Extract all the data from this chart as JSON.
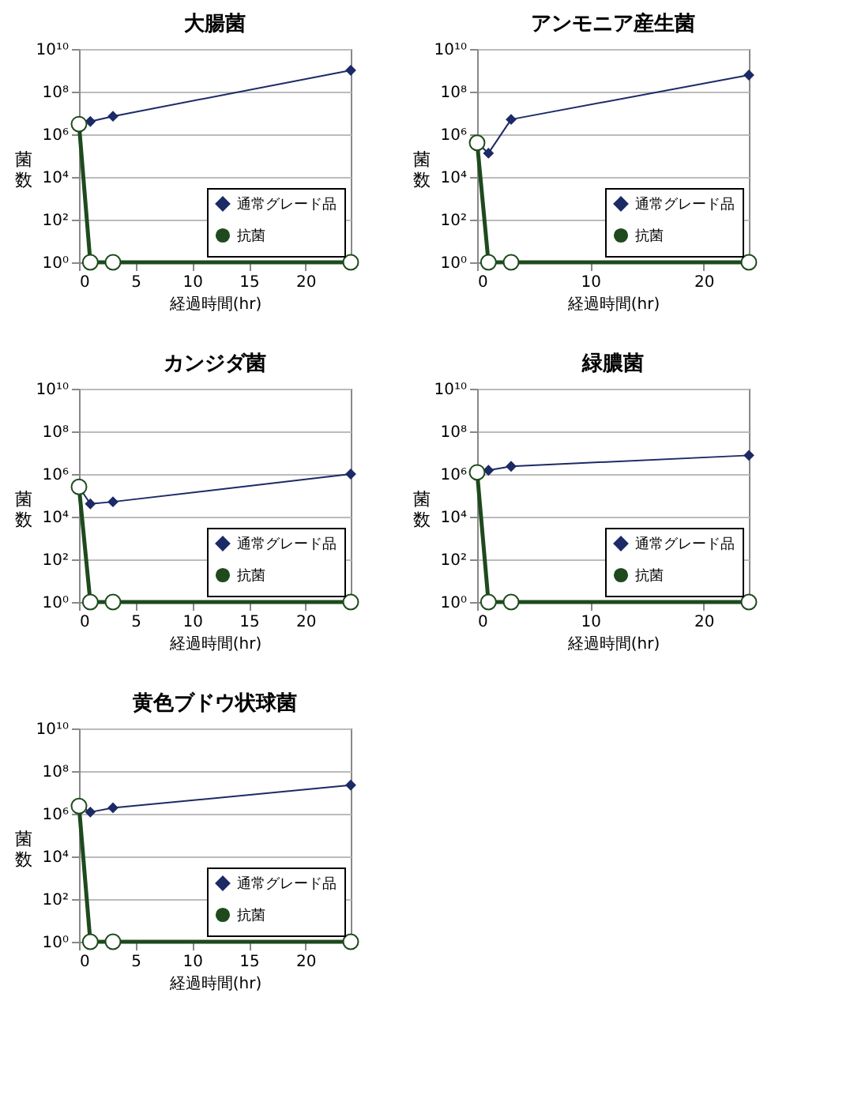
{
  "chart_data": [
    {
      "type": "line",
      "title": "大腸菌",
      "xlabel": "経過時間(hr)",
      "ylabel": "菌数",
      "log": "y",
      "legend": "bottom right",
      "grid": "y",
      "xlim": [
        0,
        24
      ],
      "xticks": [
        0,
        5,
        10,
        15,
        20
      ],
      "ylim": [
        1,
        10000000000
      ],
      "yticks": [
        {
          "value": 1,
          "label": "10⁰"
        },
        {
          "value": 100,
          "label": "10²"
        },
        {
          "value": 10000,
          "label": "10⁴"
        },
        {
          "value": 1000000,
          "label": "10⁶"
        },
        {
          "value": 100000000,
          "label": "10⁸"
        },
        {
          "value": 10000000000,
          "label": "10¹⁰"
        }
      ],
      "series": [
        {
          "name": "通常グレード品",
          "color": "#1c2a66",
          "marker": "diamond",
          "x": [
            0,
            1,
            3,
            24
          ],
          "values": [
            3000000,
            4000000,
            7000000,
            1000000000
          ]
        },
        {
          "name": "抗菌",
          "color": "#1e4a1e",
          "marker": "circle",
          "x": [
            0,
            1,
            3,
            24
          ],
          "values": [
            3000000,
            1,
            1,
            1
          ]
        }
      ]
    },
    {
      "type": "line",
      "title": "アンモニア産生菌",
      "xlabel": "経過時間(hr)",
      "ylabel": "菌数",
      "log": "y",
      "legend": "bottom right",
      "grid": "y",
      "xlim": [
        0,
        24
      ],
      "xticks": [
        0,
        10,
        20
      ],
      "ylim": [
        1,
        10000000000
      ],
      "yticks": [
        {
          "value": 1,
          "label": "10⁰"
        },
        {
          "value": 100,
          "label": "10²"
        },
        {
          "value": 10000,
          "label": "10⁴"
        },
        {
          "value": 1000000,
          "label": "10⁶"
        },
        {
          "value": 100000000,
          "label": "10⁸"
        },
        {
          "value": 10000000000,
          "label": "10¹⁰"
        }
      ],
      "series": [
        {
          "name": "通常グレード品",
          "color": "#1c2a66",
          "marker": "diamond",
          "x": [
            0,
            1,
            3,
            24
          ],
          "values": [
            400000,
            130000,
            5000000,
            600000000
          ]
        },
        {
          "name": "抗菌",
          "color": "#1e4a1e",
          "marker": "circle",
          "x": [
            0,
            1,
            3,
            24
          ],
          "values": [
            400000,
            1,
            1,
            1
          ]
        }
      ]
    },
    {
      "type": "line",
      "title": "カンジダ菌",
      "xlabel": "経過時間(hr)",
      "ylabel": "菌数",
      "log": "y",
      "legend": "bottom right",
      "grid": "y",
      "xlim": [
        0,
        24
      ],
      "xticks": [
        0,
        5,
        10,
        15,
        20
      ],
      "ylim": [
        1,
        10000000000
      ],
      "yticks": [
        {
          "value": 1,
          "label": "10⁰"
        },
        {
          "value": 100,
          "label": "10²"
        },
        {
          "value": 10000,
          "label": "10⁴"
        },
        {
          "value": 1000000,
          "label": "10⁶"
        },
        {
          "value": 100000000,
          "label": "10⁸"
        },
        {
          "value": 10000000000,
          "label": "10¹⁰"
        }
      ],
      "series": [
        {
          "name": "通常グレード品",
          "color": "#1c2a66",
          "marker": "diamond",
          "x": [
            0,
            1,
            3,
            24
          ],
          "values": [
            250000,
            40000,
            50000,
            1000000
          ]
        },
        {
          "name": "抗菌",
          "color": "#1e4a1e",
          "marker": "circle",
          "x": [
            0,
            1,
            3,
            24
          ],
          "values": [
            250000,
            1,
            1,
            1
          ]
        }
      ]
    },
    {
      "type": "line",
      "title": "緑膿菌",
      "xlabel": "経過時間(hr)",
      "ylabel": "菌数",
      "log": "y",
      "legend": "bottom right",
      "grid": "y",
      "xlim": [
        0,
        24
      ],
      "xticks": [
        0,
        10,
        20
      ],
      "ylim": [
        1,
        10000000000
      ],
      "yticks": [
        {
          "value": 1,
          "label": "10⁰"
        },
        {
          "value": 100,
          "label": "10²"
        },
        {
          "value": 10000,
          "label": "10⁴"
        },
        {
          "value": 1000000,
          "label": "10⁶"
        },
        {
          "value": 100000000,
          "label": "10⁸"
        },
        {
          "value": 10000000000,
          "label": "10¹⁰"
        }
      ],
      "series": [
        {
          "name": "通常グレード品",
          "color": "#1c2a66",
          "marker": "diamond",
          "x": [
            0,
            1,
            3,
            24
          ],
          "values": [
            1200000,
            1500000,
            2300000,
            7500000
          ]
        },
        {
          "name": "抗菌",
          "color": "#1e4a1e",
          "marker": "circle",
          "x": [
            0,
            1,
            3,
            24
          ],
          "values": [
            1200000,
            1,
            1,
            1
          ]
        }
      ]
    },
    {
      "type": "line",
      "title": "黄色ブドウ状球菌",
      "xlabel": "経過時間(hr)",
      "ylabel": "菌数",
      "log": "y",
      "legend": "bottom right",
      "grid": "y",
      "xlim": [
        0,
        24
      ],
      "xticks": [
        0,
        5,
        10,
        15,
        20
      ],
      "ylim": [
        1,
        10000000000
      ],
      "yticks": [
        {
          "value": 1,
          "label": "10⁰"
        },
        {
          "value": 100,
          "label": "10²"
        },
        {
          "value": 10000,
          "label": "10⁴"
        },
        {
          "value": 1000000,
          "label": "10⁶"
        },
        {
          "value": 100000000,
          "label": "10⁸"
        },
        {
          "value": 10000000000,
          "label": "10¹⁰"
        }
      ],
      "series": [
        {
          "name": "通常グレード品",
          "color": "#1c2a66",
          "marker": "diamond",
          "x": [
            0,
            1,
            3,
            24
          ],
          "values": [
            2300000,
            1200000,
            1900000,
            22000000
          ]
        },
        {
          "name": "抗菌",
          "color": "#1e4a1e",
          "marker": "circle",
          "x": [
            0,
            1,
            3,
            24
          ],
          "values": [
            2300000,
            1,
            1,
            1
          ]
        }
      ]
    }
  ]
}
